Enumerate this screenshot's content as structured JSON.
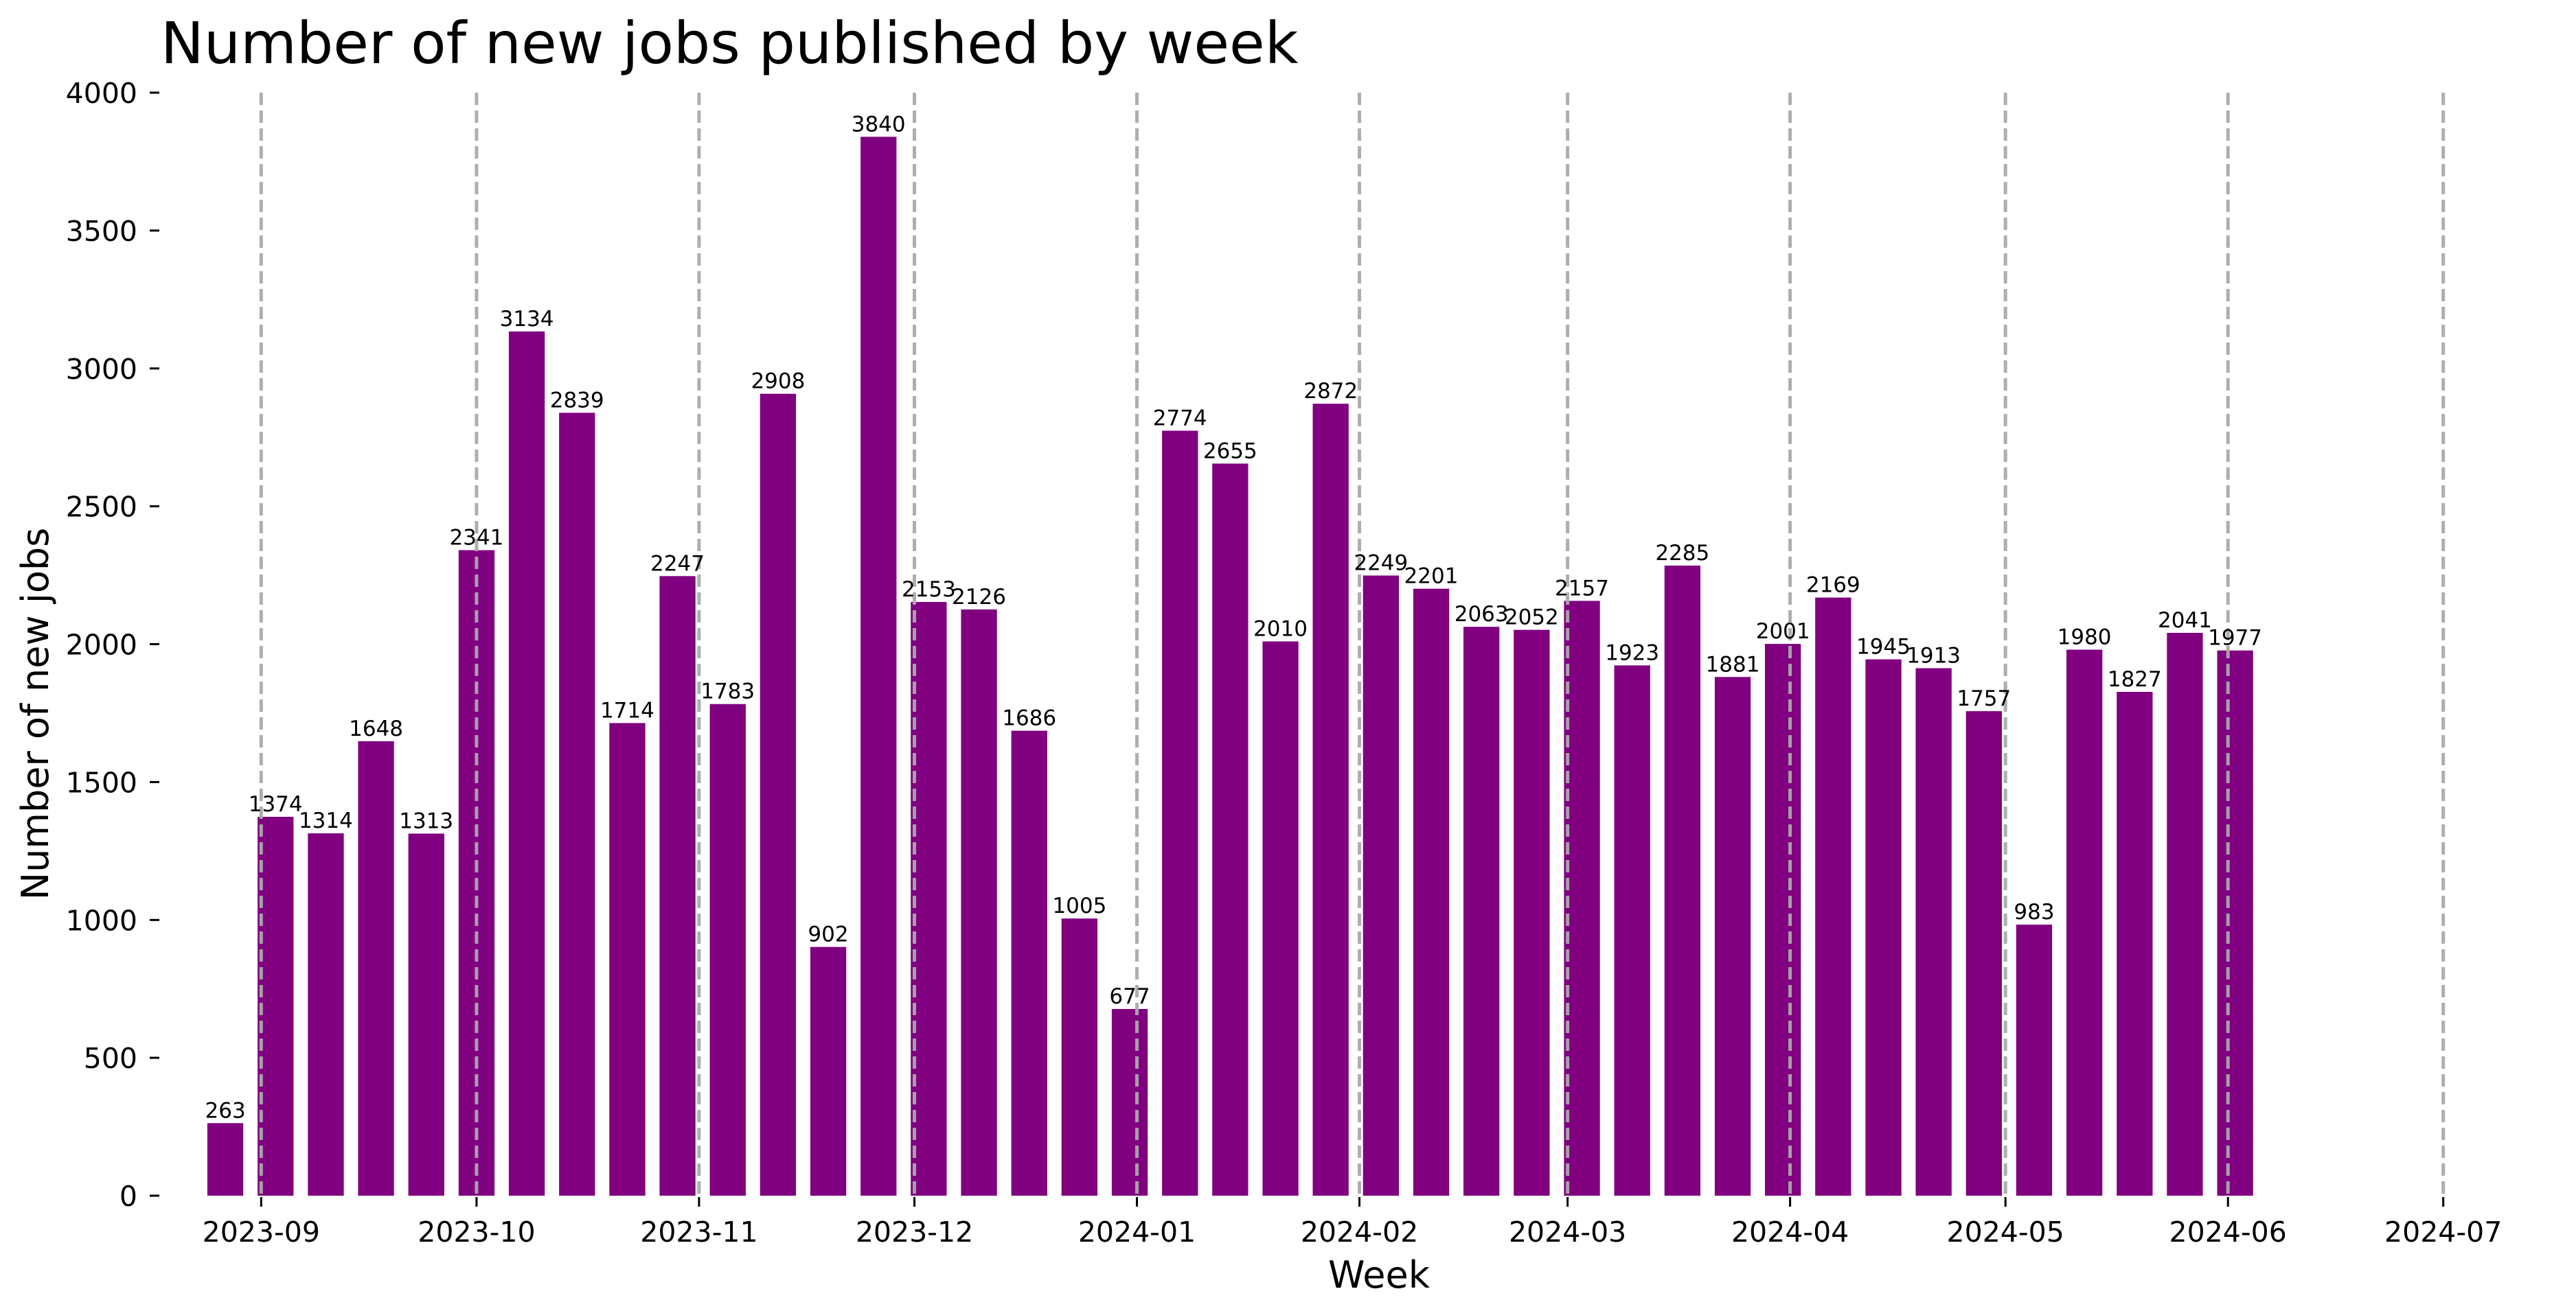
{
  "chart_data": {
    "type": "bar",
    "title": "Number of new jobs published by week",
    "xlabel": "Week",
    "ylabel": "Number of new jobs",
    "ylim": [
      0,
      4000
    ],
    "yticks": [
      0,
      500,
      1000,
      1500,
      2000,
      2500,
      3000,
      3500,
      4000
    ],
    "xlim": [
      "2023-08-18",
      "2024-07-06"
    ],
    "xticks": [
      "2023-09-01",
      "2023-10-01",
      "2023-11-01",
      "2023-12-01",
      "2024-01-01",
      "2024-02-01",
      "2024-03-01",
      "2024-04-01",
      "2024-05-01",
      "2024-06-01",
      "2024-07-01"
    ],
    "xtick_labels": [
      "2023-09",
      "2023-10",
      "2023-11",
      "2023-12",
      "2024-01",
      "2024-02",
      "2024-03",
      "2024-04",
      "2024-05",
      "2024-06",
      "2024-07"
    ],
    "month_gridlines": true,
    "grid_color": "#aaaaaa",
    "bar_color": "#800080",
    "x": [
      "2023-08-27",
      "2023-09-03",
      "2023-09-10",
      "2023-09-17",
      "2023-09-24",
      "2023-10-01",
      "2023-10-08",
      "2023-10-15",
      "2023-10-22",
      "2023-10-29",
      "2023-11-05",
      "2023-11-12",
      "2023-11-19",
      "2023-11-26",
      "2023-12-03",
      "2023-12-10",
      "2023-12-17",
      "2023-12-24",
      "2023-12-31",
      "2024-01-07",
      "2024-01-14",
      "2024-01-21",
      "2024-01-28",
      "2024-02-04",
      "2024-02-11",
      "2024-02-18",
      "2024-02-25",
      "2024-03-03",
      "2024-03-10",
      "2024-03-17",
      "2024-03-24",
      "2024-03-31",
      "2024-04-07",
      "2024-04-14",
      "2024-04-21",
      "2024-04-28",
      "2024-05-05",
      "2024-05-12",
      "2024-05-19",
      "2024-05-26",
      "2024-06-02"
    ],
    "values": [
      263,
      1374,
      1314,
      1648,
      1313,
      2341,
      3134,
      2839,
      1714,
      2247,
      1783,
      2908,
      902,
      3840,
      2153,
      2126,
      1686,
      1005,
      677,
      2774,
      2655,
      2010,
      2872,
      2249,
      2201,
      2063,
      2052,
      2157,
      1923,
      2285,
      1881,
      2001,
      2169,
      1945,
      1913,
      1757,
      983,
      1980,
      1827,
      2041,
      1977
    ]
  }
}
